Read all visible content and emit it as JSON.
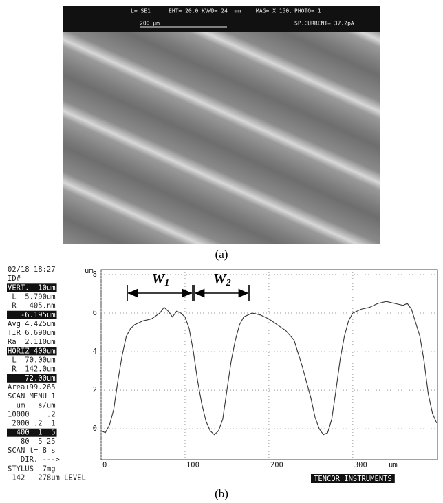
{
  "figure_a": {
    "header": [
      "L= SE1",
      "EHT= 20.0 KV",
      "WD= 24  mm",
      "MAG= X 150.",
      "PHOTO= 1",
      "200 µm",
      "SP.CURRENT= 37.2pA"
    ],
    "caption": "(a)"
  },
  "profile_panel": {
    "lines": [
      {
        "text": "02/18 18:27"
      },
      {
        "text": "ID#"
      },
      {
        "text": "VERT.  10um",
        "highlight": true
      },
      {
        "text": " L  5.790um"
      },
      {
        "text": " R - 405.nm"
      },
      {
        "text": "   -6.195um",
        "highlight": true
      },
      {
        "text": "Avg 4.425um"
      },
      {
        "text": "TIR 6.690um"
      },
      {
        "text": "Ra  2.110um"
      },
      {
        "text": "HORIZ 400um",
        "highlight": true
      },
      {
        "text": " L  70.00um"
      },
      {
        "text": " R  142.0um"
      },
      {
        "text": "    72.00um",
        "highlight": true
      },
      {
        "text": "Area+99.265"
      },
      {
        "text": "SCAN MENU 1"
      },
      {
        "text": "  um   s/um"
      },
      {
        "text": "10000    .2"
      },
      {
        "text": " 2000 .2  1"
      },
      {
        "text": "  400  1  5",
        "highlight": true
      },
      {
        "text": "   80  5 25"
      },
      {
        "text": "SCAN t= 8 s"
      },
      {
        "text": "   DIR. --->"
      },
      {
        "text": "STYLUS  7mg"
      },
      {
        "text": " 142   278um LEVEL"
      }
    ],
    "brand": "TENCOR INSTRUMENTS",
    "caption": "(b)"
  },
  "chart_data": {
    "type": "line",
    "y_unit": "um",
    "x_unit": "um",
    "annotations": [
      {
        "text": "W",
        "sub": "1"
      },
      {
        "text": "W",
        "sub": "2"
      }
    ],
    "xlim": [
      0,
      401
    ],
    "ylim": [
      -1.6,
      8.25
    ],
    "xticks": [
      0,
      100,
      200,
      300
    ],
    "yticks": [
      0,
      2,
      4,
      6,
      8
    ],
    "grid": true,
    "x": [
      0,
      5,
      10,
      15,
      20,
      25,
      30,
      35,
      40,
      50,
      60,
      70,
      75,
      80,
      85,
      90,
      95,
      100,
      105,
      110,
      115,
      120,
      125,
      130,
      135,
      140,
      145,
      150,
      155,
      160,
      165,
      170,
      180,
      190,
      200,
      210,
      220,
      230,
      240,
      250,
      255,
      260,
      265,
      270,
      275,
      280,
      285,
      290,
      295,
      300,
      310,
      320,
      330,
      340,
      350,
      360,
      365,
      370,
      380,
      385,
      390,
      395,
      400
    ],
    "series": [
      {
        "color": "#333333",
        "values": [
          -0.1,
          -0.2,
          0.2,
          1,
          2.5,
          3.8,
          4.8,
          5.2,
          5.4,
          5.6,
          5.7,
          6.0,
          6.3,
          6.1,
          5.8,
          6.1,
          6.0,
          5.8,
          5.2,
          4.0,
          2.5,
          1.3,
          0.4,
          -0.1,
          -0.3,
          -0.1,
          0.5,
          2,
          3.5,
          4.6,
          5.4,
          5.8,
          6.0,
          5.9,
          5.7,
          5.4,
          5.1,
          4.6,
          3.2,
          1.6,
          0.6,
          0,
          -0.3,
          -0.2,
          0.5,
          2,
          3.6,
          4.8,
          5.6,
          6.0,
          6.2,
          6.3,
          6.5,
          6.6,
          6.5,
          6.4,
          6.5,
          6.2,
          4.8,
          3.5,
          1.8,
          0.8,
          0.3
        ]
      }
    ]
  }
}
